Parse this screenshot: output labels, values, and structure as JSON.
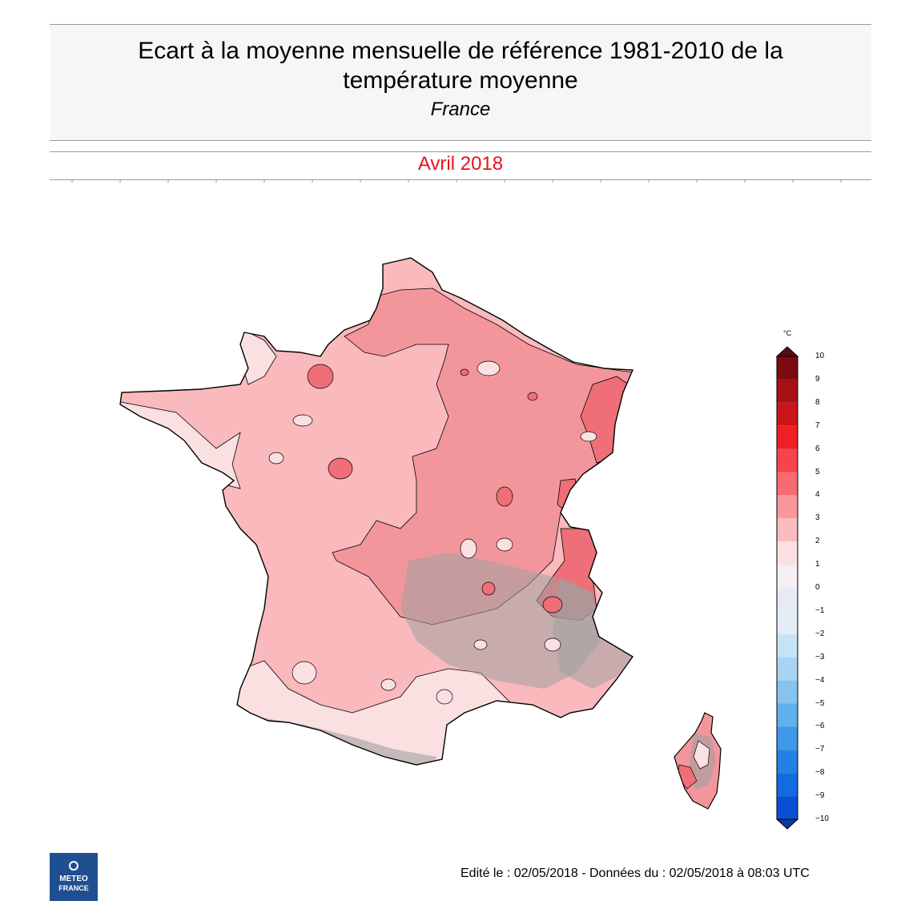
{
  "header": {
    "title_line1": "Ecart à la moyenne mensuelle de référence 1981-2010 de la",
    "title_line2": "température moyenne",
    "region": "France",
    "period": "Avril 2018"
  },
  "map": {
    "region": "France",
    "colors": {
      "outline": "#000000",
      "band_1_2": "#fbe0e2",
      "band_2_3": "#f9b9bd",
      "band_3_4": "#f3969c",
      "band_4_5": "#ee6f77",
      "relief_shade": "#a0a0a0"
    }
  },
  "legend": {
    "unit": "°C",
    "labels": [
      "10",
      "9",
      "8",
      "7",
      "6",
      "5",
      "4",
      "3",
      "2",
      "1",
      "0",
      "−1",
      "−2",
      "−3",
      "−4",
      "−5",
      "−6",
      "−7",
      "−8",
      "−9",
      "−10"
    ],
    "colors": [
      "#7a0a12",
      "#a50f15",
      "#cc1418",
      "#ef2024",
      "#f6444c",
      "#f86b73",
      "#f8989c",
      "#f9bcbf",
      "#fbdfe1",
      "#f5eef2",
      "#e6eaf4",
      "#e3ecf7",
      "#c6e2f6",
      "#a9d3f2",
      "#87c3ef",
      "#5fb0ec",
      "#3d98e8",
      "#2381e4",
      "#146ae0",
      "#0b4fd6"
    ],
    "max_arrow_color": "#5a0a10",
    "min_arrow_color": "#0a3a9a"
  },
  "footer": {
    "text": "Edité le : 02/05/2018 - Données du : 02/05/2018 à 08:03 UTC"
  },
  "logo": {
    "line1": "METEO",
    "line2": "FRANCE",
    "color": "#1f4f91"
  }
}
